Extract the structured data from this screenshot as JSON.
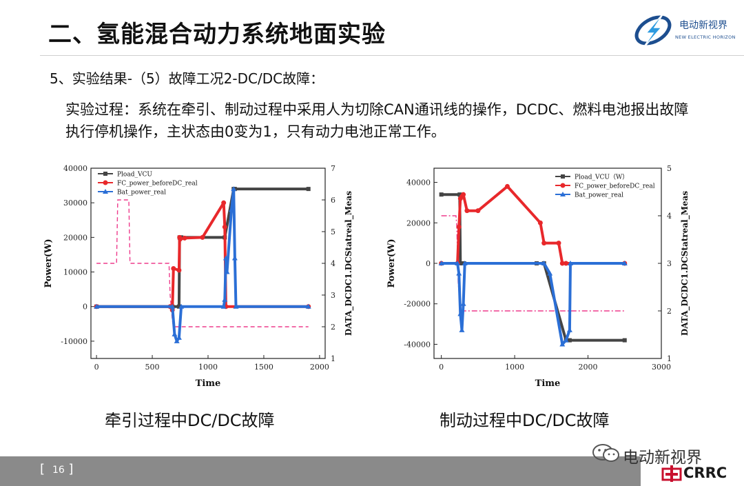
{
  "header": {
    "title": "二、氢能混合动力系统地面实验",
    "logo_cn": "电动新视界",
    "logo_en": "NEW ELECTRIC HORIZON"
  },
  "subtitle": "5、实验结果-（5）故障工况2-DC/DC故障：",
  "paragraph": "实验过程：系统在牵引、制动过程中采用人为切除CAN通讯线的操作，DCDC、燃料电池报出故障执行停机操作，主状态由0变为1，只有动力电池正常工作。",
  "captions": {
    "left": "牵引过程中DC/DC故障",
    "right": "制动过程中DC/DC故障"
  },
  "footer": {
    "page_number": "16",
    "wechat_text": "电动新视界",
    "brand": "CRRC",
    "brand_color": "#c8102e"
  },
  "chart_data": [
    {
      "type": "line",
      "xlabel": "Time",
      "ylabel": "Power(W)",
      "y2label": "DATA_DCDC1.DCStatreal_Meas",
      "xlim": [
        -50,
        2050
      ],
      "ylim": [
        -15000,
        40000
      ],
      "y2lim": [
        1,
        7
      ],
      "xticks": [
        0,
        500,
        1000,
        1500,
        2000
      ],
      "yticks": [
        -10000,
        0,
        10000,
        20000,
        30000,
        40000
      ],
      "y2ticks": [
        1,
        2,
        3,
        4,
        5,
        6,
        7
      ],
      "legend_position": "top-left",
      "series": [
        {
          "name": "Pload_VCU",
          "color": "#444444",
          "marker": "square",
          "x": [
            0,
            680,
            740,
            745,
            760,
            1150,
            1230,
            1240,
            1900
          ],
          "y": [
            0,
            0,
            0,
            20000,
            20000,
            20000,
            34000,
            34000,
            34000
          ]
        },
        {
          "name": "FC_power_beforeDC_real",
          "color": "#e8282b",
          "marker": "circle",
          "x": [
            0,
            660,
            680,
            690,
            740,
            745,
            750,
            790,
            950,
            1140,
            1150,
            1160,
            1900
          ],
          "y": [
            0,
            0,
            -1000,
            11000,
            10500,
            20000,
            19500,
            19800,
            20000,
            30000,
            23000,
            0,
            0
          ]
        },
        {
          "name": "Bat_power_real",
          "color": "#2b6fd6",
          "marker": "triangle",
          "x": [
            0,
            680,
            700,
            720,
            740,
            760,
            1140,
            1150,
            1160,
            1170,
            1210,
            1230,
            1240,
            1250,
            1900
          ],
          "y": [
            0,
            0,
            -8000,
            -10000,
            -9000,
            0,
            0,
            2000,
            14000,
            10000,
            28000,
            34000,
            14000,
            0,
            0
          ]
        }
      ],
      "status_series": {
        "color": "#ee3a8c",
        "style": "dashed",
        "x": [
          0,
          180,
          190,
          290,
          300,
          650,
          660,
          680,
          690,
          1900
        ],
        "y": [
          4,
          4,
          6,
          6,
          4,
          4,
          3,
          2.2,
          2,
          2
        ]
      }
    },
    {
      "type": "line",
      "xlabel": "Time",
      "ylabel": "Power(W)",
      "y2label": "DATA_DCDC1.DCStatreal_Meas",
      "xlim": [
        -100,
        3000
      ],
      "ylim": [
        -47000,
        47000
      ],
      "y2lim": [
        1,
        5
      ],
      "xticks": [
        0,
        1000,
        2000,
        3000
      ],
      "yticks": [
        -40000,
        -20000,
        0,
        20000,
        40000
      ],
      "y2ticks": [
        1,
        2,
        3,
        4,
        5
      ],
      "legend_position": "top-right",
      "series": [
        {
          "name": "Pload_VCU（W）",
          "color": "#444444",
          "marker": "square",
          "x": [
            0,
            250,
            260,
            280,
            300,
            310,
            1300,
            1400,
            1700,
            1750,
            2500
          ],
          "y": [
            34000,
            34000,
            0,
            0,
            0,
            0,
            0,
            0,
            -38000,
            -38000,
            -38000
          ]
        },
        {
          "name": "FC_power_beforeDC_real",
          "color": "#e8282b",
          "marker": "circle",
          "x": [
            0,
            220,
            240,
            260,
            280,
            300,
            350,
            500,
            900,
            1350,
            1400,
            1600,
            1650,
            1700,
            2500
          ],
          "y": [
            0,
            0,
            18000,
            32000,
            33000,
            34000,
            26000,
            26000,
            38000,
            20000,
            10000,
            10000,
            0,
            0,
            0
          ]
        },
        {
          "name": "Bat_power_real",
          "color": "#2b6fd6",
          "marker": "triangle",
          "x": [
            0,
            220,
            240,
            260,
            280,
            300,
            320,
            1400,
            1480,
            1650,
            1700,
            1750,
            1760,
            2500
          ],
          "y": [
            0,
            0,
            -5000,
            -25000,
            -33000,
            -20000,
            0,
            0,
            -5000,
            -40000,
            -38000,
            -33000,
            0,
            0
          ]
        }
      ],
      "status_series": {
        "color": "#ee3a8c",
        "style": "dashdot",
        "x": [
          0,
          200,
          210,
          230,
          250,
          260,
          2500
        ],
        "y": [
          4,
          4,
          3.8,
          2.6,
          2.2,
          2,
          2
        ]
      }
    }
  ]
}
